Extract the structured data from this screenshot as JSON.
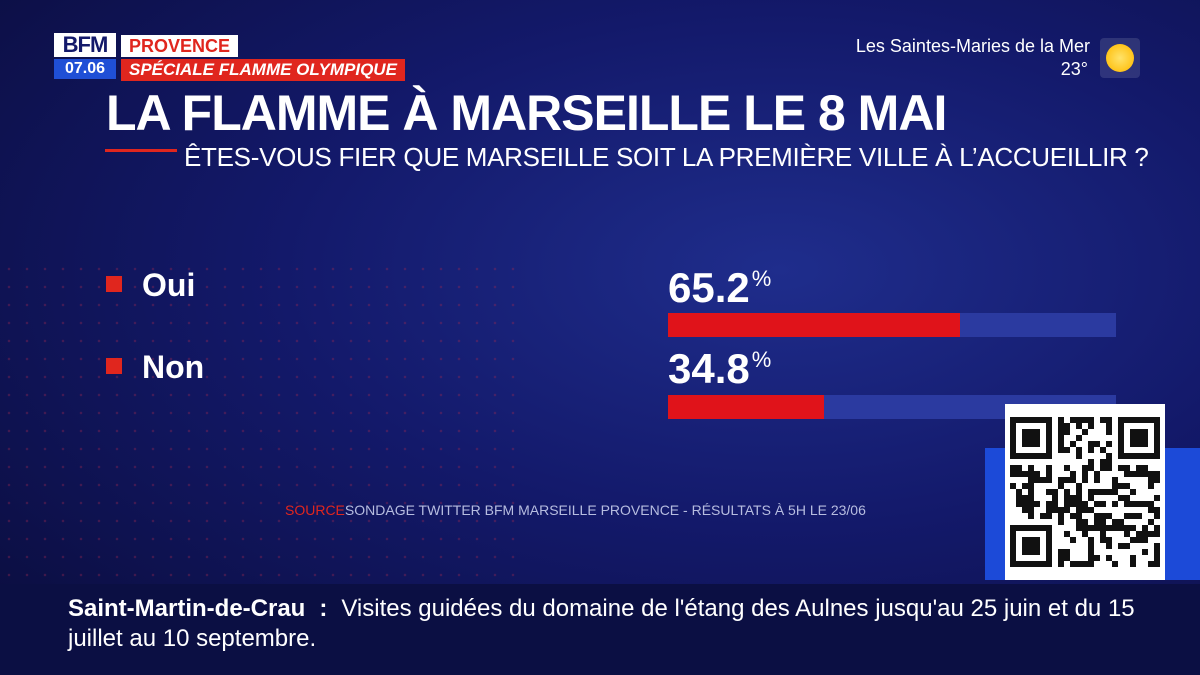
{
  "channel": {
    "logo": "BFM",
    "time": "07.06",
    "region_tag": "PROVENCE",
    "program_tag": "SPÉCIALE FLAMME OLYMPIQUE"
  },
  "weather": {
    "location": "Les Saintes-Maries de la Mer",
    "temperature": "23°",
    "icon": "sun-icon"
  },
  "headline": "LA FLAMME À MARSEILLE LE 8 MAI",
  "question": "ÊTES-VOUS FIER QUE MARSEILLE SOIT LA PREMIÈRE VILLE À L’ACCUEILLIR ?",
  "chart_data": {
    "type": "bar",
    "orientation": "horizontal",
    "title": "LA FLAMME À MARSEILLE LE 8 MAI",
    "subtitle": "ÊTES-VOUS FIER QUE MARSEILLE SOIT LA PREMIÈRE VILLE À L’ACCUEILLIR ?",
    "categories": [
      "Oui",
      "Non"
    ],
    "values": [
      65.2,
      34.8
    ],
    "value_labels": [
      "65.2",
      "34.8"
    ],
    "unit": "%",
    "xlim": [
      0,
      100
    ],
    "grid": false,
    "colors": {
      "bar": "#e0131a",
      "track": "#2b3aa0",
      "marker": "#e0261e"
    }
  },
  "source": {
    "label": "SOURCE",
    "text": "SONDAGE TWITTER BFM MARSEILLE PROVENCE - RÉSULTATS À 5H LE 23/06"
  },
  "ticker": {
    "place": "Saint-Martin-de-Crau",
    "separator": ":",
    "text": "Visites guidées du domaine de l'étang des Aulnes jusqu'au 25 juin et du 15 juillet au 10 septembre."
  },
  "qr": {
    "icon": "qr-code-icon"
  }
}
